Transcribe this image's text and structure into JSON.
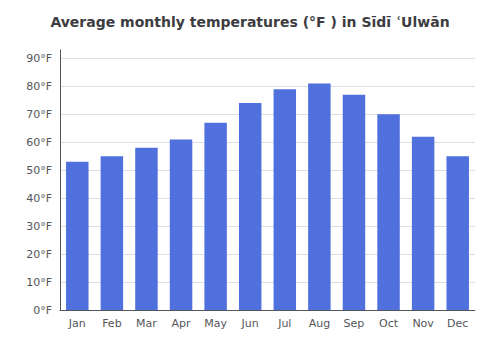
{
  "chart_data": {
    "type": "bar",
    "title": "Average monthly temperatures (°F ) in Sīdī ʿUlwān",
    "categories": [
      "Jan",
      "Feb",
      "Mar",
      "Apr",
      "May",
      "Jun",
      "Jul",
      "Aug",
      "Sep",
      "Oct",
      "Nov",
      "Dec"
    ],
    "values": [
      53,
      55,
      58,
      61,
      67,
      74,
      79,
      81,
      77,
      70,
      62,
      55
    ],
    "ylim": [
      0,
      93
    ],
    "yticks": [
      {
        "value": 0,
        "label": "0°F"
      },
      {
        "value": 10,
        "label": "10°F"
      },
      {
        "value": 20,
        "label": "20°F"
      },
      {
        "value": 30,
        "label": "30°F"
      },
      {
        "value": 40,
        "label": "40°F"
      },
      {
        "value": 50,
        "label": "50°F"
      },
      {
        "value": 60,
        "label": "60°F"
      },
      {
        "value": 70,
        "label": "70°F"
      },
      {
        "value": 80,
        "label": "80°F"
      },
      {
        "value": 90,
        "label": "90°F"
      }
    ],
    "grid": true
  }
}
